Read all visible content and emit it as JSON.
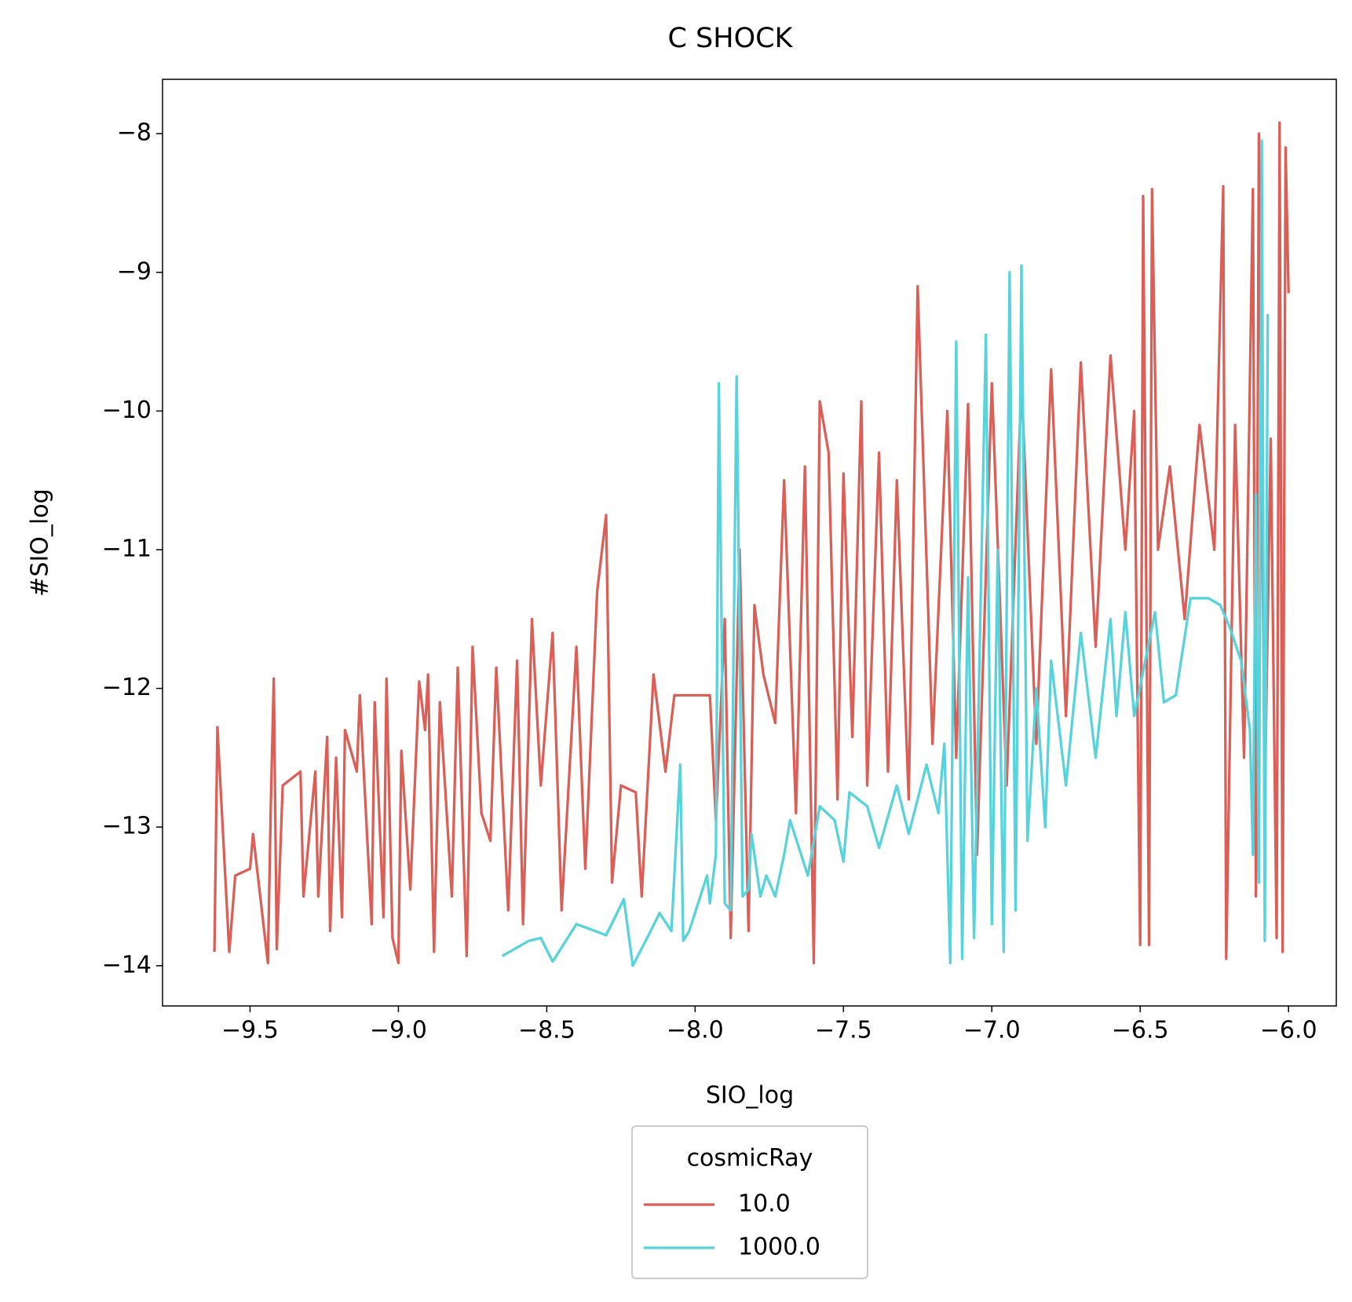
{
  "chart_data": {
    "type": "line",
    "title": "C SHOCK",
    "x_label": "SIO_log",
    "y_label": "#SIO_log",
    "legend_title": "cosmicRay",
    "legend": "below",
    "xlim": [
      -9.795,
      -5.839
    ],
    "ylim": [
      -14.29,
      -7.608
    ],
    "xticks": [
      {
        "value": -9.5,
        "label": "−9.5"
      },
      {
        "value": -9.0,
        "label": "−9.0"
      },
      {
        "value": -8.5,
        "label": "−8.5"
      },
      {
        "value": -8.0,
        "label": "−8.0"
      },
      {
        "value": -7.5,
        "label": "−7.5"
      },
      {
        "value": -7.0,
        "label": "−7.0"
      },
      {
        "value": -6.5,
        "label": "−6.5"
      },
      {
        "value": -6.0,
        "label": "−6.0"
      }
    ],
    "yticks": [
      {
        "value": -14,
        "label": "−14"
      },
      {
        "value": -13,
        "label": "−13"
      },
      {
        "value": -12,
        "label": "−12"
      },
      {
        "value": -11,
        "label": "−11"
      },
      {
        "value": -10,
        "label": "−10"
      },
      {
        "value": -9,
        "label": "−9"
      },
      {
        "value": -8,
        "label": "−8"
      }
    ],
    "series": [
      {
        "name": "10.0",
        "color": "#db5f57",
        "x": [
          -9.62,
          -9.61,
          -9.57,
          -9.55,
          -9.5,
          -9.49,
          -9.44,
          -9.43,
          -9.42,
          -9.41,
          -9.39,
          -9.33,
          -9.32,
          -9.28,
          -9.27,
          -9.24,
          -9.23,
          -9.21,
          -9.19,
          -9.18,
          -9.14,
          -9.13,
          -9.09,
          -9.08,
          -9.05,
          -9.04,
          -9.02,
          -9.0,
          -8.99,
          -8.96,
          -8.93,
          -8.91,
          -8.9,
          -8.88,
          -8.86,
          -8.82,
          -8.8,
          -8.77,
          -8.75,
          -8.72,
          -8.69,
          -8.67,
          -8.63,
          -8.6,
          -8.58,
          -8.55,
          -8.52,
          -8.48,
          -8.45,
          -8.4,
          -8.37,
          -8.33,
          -8.3,
          -8.28,
          -8.25,
          -8.2,
          -8.18,
          -8.14,
          -8.1,
          -8.07,
          -8.0,
          -7.95,
          -7.93,
          -7.9,
          -7.88,
          -7.85,
          -7.82,
          -7.8,
          -7.77,
          -7.73,
          -7.7,
          -7.66,
          -7.63,
          -7.6,
          -7.58,
          -7.55,
          -7.52,
          -7.5,
          -7.47,
          -7.44,
          -7.42,
          -7.38,
          -7.35,
          -7.32,
          -7.28,
          -7.25,
          -7.2,
          -7.15,
          -7.12,
          -7.08,
          -7.05,
          -7.0,
          -6.95,
          -6.9,
          -6.85,
          -6.8,
          -6.75,
          -6.7,
          -6.65,
          -6.6,
          -6.55,
          -6.52,
          -6.5,
          -6.49,
          -6.47,
          -6.46,
          -6.44,
          -6.4,
          -6.35,
          -6.3,
          -6.25,
          -6.22,
          -6.21,
          -6.18,
          -6.15,
          -6.12,
          -6.11,
          -6.1,
          -6.08,
          -6.06,
          -6.04,
          -6.03,
          -6.02,
          -6.01,
          -6.0
        ],
        "values": [
          -13.9,
          -12.28,
          -13.9,
          -13.35,
          -13.3,
          -13.05,
          -13.98,
          -12.85,
          -11.93,
          -13.88,
          -12.7,
          -12.6,
          -13.5,
          -12.6,
          -13.5,
          -12.35,
          -13.75,
          -12.5,
          -13.65,
          -12.3,
          -12.6,
          -12.05,
          -13.7,
          -12.1,
          -13.65,
          -11.93,
          -13.8,
          -13.98,
          -12.45,
          -13.45,
          -11.95,
          -12.3,
          -11.9,
          -13.9,
          -12.1,
          -13.5,
          -11.85,
          -13.93,
          -11.7,
          -12.9,
          -13.1,
          -11.85,
          -13.6,
          -11.8,
          -13.7,
          -11.5,
          -12.7,
          -11.6,
          -13.6,
          -11.7,
          -13.3,
          -11.3,
          -10.75,
          -13.4,
          -12.7,
          -12.75,
          -13.5,
          -11.9,
          -12.6,
          -12.05,
          -12.05,
          -12.05,
          -12.95,
          -11.5,
          -13.8,
          -11.0,
          -13.75,
          -11.4,
          -11.9,
          -12.25,
          -10.5,
          -12.9,
          -10.4,
          -13.98,
          -9.93,
          -10.3,
          -12.8,
          -10.45,
          -12.35,
          -9.93,
          -12.7,
          -10.3,
          -12.6,
          -10.5,
          -12.8,
          -9.1,
          -12.4,
          -10.0,
          -12.5,
          -9.95,
          -13.2,
          -9.8,
          -12.7,
          -9.8,
          -12.4,
          -9.7,
          -12.2,
          -9.65,
          -11.7,
          -9.6,
          -11.0,
          -10.0,
          -13.85,
          -8.45,
          -13.85,
          -8.4,
          -11.0,
          -10.4,
          -11.5,
          -10.1,
          -11.0,
          -8.38,
          -13.95,
          -10.1,
          -12.5,
          -8.4,
          -13.5,
          -8.0,
          -12.8,
          -10.2,
          -13.8,
          -7.92,
          -13.9,
          -8.1,
          -9.15
        ]
      },
      {
        "name": "1000.0",
        "color": "#57d3db",
        "x": [
          -8.65,
          -8.56,
          -8.52,
          -8.48,
          -8.4,
          -8.3,
          -8.24,
          -8.21,
          -8.15,
          -8.12,
          -8.08,
          -8.05,
          -8.04,
          -8.02,
          -7.96,
          -7.95,
          -7.93,
          -7.92,
          -7.9,
          -7.88,
          -7.86,
          -7.84,
          -7.82,
          -7.81,
          -7.78,
          -7.76,
          -7.73,
          -7.7,
          -7.68,
          -7.62,
          -7.58,
          -7.53,
          -7.5,
          -7.48,
          -7.42,
          -7.38,
          -7.32,
          -7.28,
          -7.22,
          -7.18,
          -7.16,
          -7.14,
          -7.12,
          -7.1,
          -7.08,
          -7.06,
          -7.02,
          -7.0,
          -6.98,
          -6.96,
          -6.94,
          -6.92,
          -6.9,
          -6.88,
          -6.85,
          -6.82,
          -6.8,
          -6.75,
          -6.7,
          -6.65,
          -6.6,
          -6.58,
          -6.55,
          -6.52,
          -6.45,
          -6.42,
          -6.38,
          -6.33,
          -6.27,
          -6.23,
          -6.2,
          -6.16,
          -6.13,
          -6.12,
          -6.11,
          -6.1,
          -6.09,
          -6.08,
          -6.07
        ],
        "values": [
          -13.93,
          -13.82,
          -13.8,
          -13.97,
          -13.7,
          -13.78,
          -13.52,
          -14.0,
          -13.75,
          -13.62,
          -13.75,
          -12.55,
          -13.82,
          -13.75,
          -13.35,
          -13.55,
          -13.2,
          -9.8,
          -13.55,
          -13.6,
          -9.75,
          -13.5,
          -13.45,
          -13.05,
          -13.5,
          -13.35,
          -13.5,
          -13.2,
          -12.95,
          -13.35,
          -12.85,
          -12.95,
          -13.25,
          -12.75,
          -12.85,
          -13.15,
          -12.7,
          -13.05,
          -12.55,
          -12.9,
          -12.4,
          -13.98,
          -9.5,
          -13.95,
          -11.2,
          -13.8,
          -9.45,
          -13.7,
          -11.0,
          -13.9,
          -9.0,
          -13.6,
          -8.95,
          -13.1,
          -12.0,
          -13.0,
          -11.8,
          -12.7,
          -11.6,
          -12.5,
          -11.5,
          -12.2,
          -11.45,
          -12.2,
          -11.45,
          -12.1,
          -12.05,
          -11.35,
          -11.35,
          -11.4,
          -11.55,
          -11.8,
          -12.3,
          -13.2,
          -10.6,
          -13.4,
          -8.05,
          -13.82,
          -9.3
        ]
      }
    ]
  }
}
